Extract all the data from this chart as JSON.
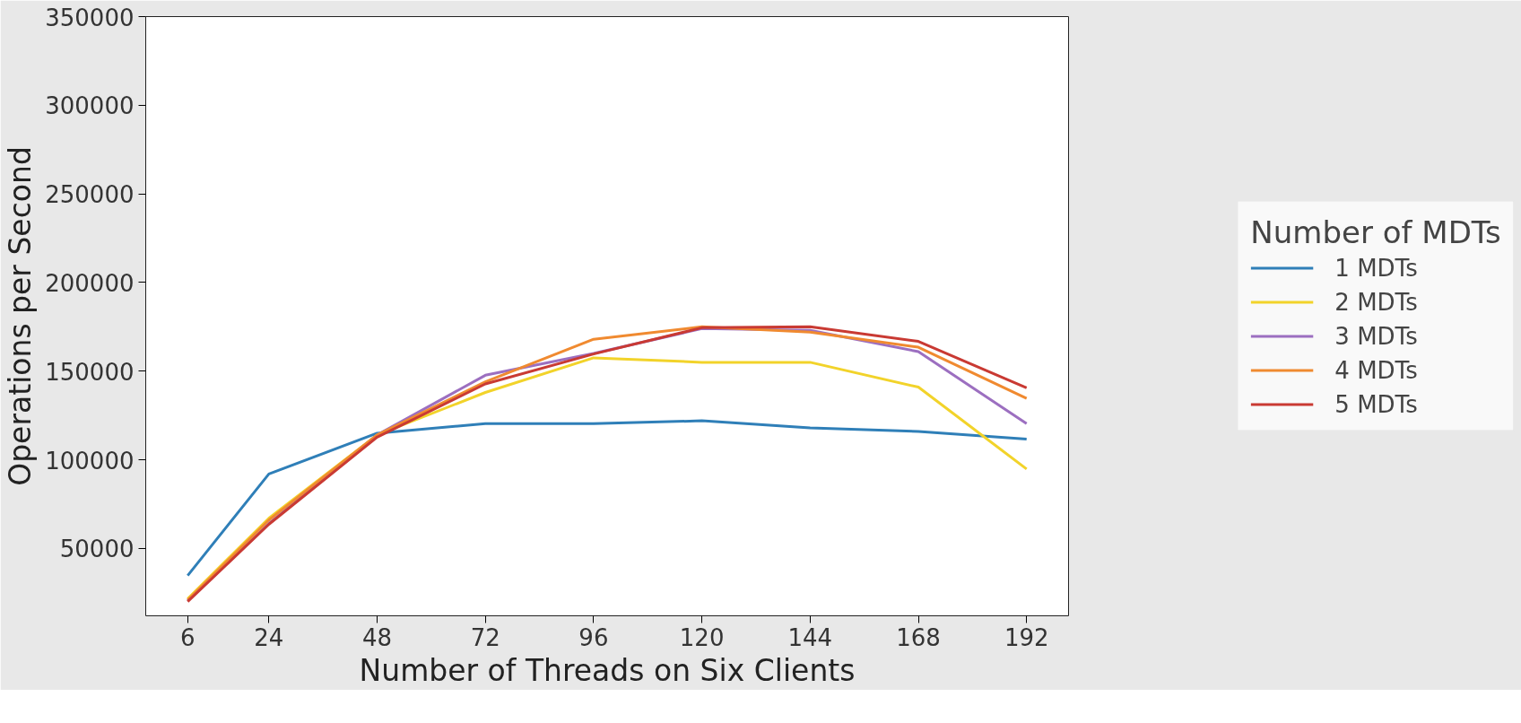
{
  "chart_data": {
    "type": "line",
    "xlabel": "Number of Threads on Six Clients",
    "ylabel": "Operations per Second",
    "legend_title": "Number of MDTs",
    "legend": "right",
    "grid": false,
    "x": [
      6,
      24,
      48,
      72,
      96,
      120,
      144,
      168,
      192
    ],
    "xlim": [
      -3.3,
      201.3
    ],
    "xticks": [
      6,
      24,
      48,
      72,
      96,
      120,
      144,
      168,
      192
    ],
    "ylim": [
      12000,
      350000
    ],
    "yticks": [
      50000,
      100000,
      150000,
      200000,
      250000,
      300000,
      350000
    ],
    "series": [
      {
        "name": "1 MDTs",
        "color": "#2f7fb8",
        "values": [
          34700,
          92000,
          115000,
          120400,
          120400,
          122000,
          118000,
          116000,
          111700
        ]
      },
      {
        "name": "2 MDTs",
        "color": "#f2d32a",
        "values": [
          21600,
          67000,
          114000,
          138000,
          157500,
          155000,
          155000,
          141000,
          94800
        ]
      },
      {
        "name": "3 MDTs",
        "color": "#9c6fc0",
        "values": [
          20500,
          64000,
          114000,
          147700,
          160000,
          174000,
          173000,
          161000,
          120400
        ]
      },
      {
        "name": "4 MDTs",
        "color": "#f08a30",
        "values": [
          21000,
          66000,
          114000,
          144000,
          168000,
          175000,
          172000,
          163500,
          134600
        ]
      },
      {
        "name": "5 MDTs",
        "color": "#c93a33",
        "values": [
          20000,
          63600,
          112800,
          142800,
          159700,
          174500,
          175000,
          166800,
          140600
        ]
      }
    ]
  }
}
